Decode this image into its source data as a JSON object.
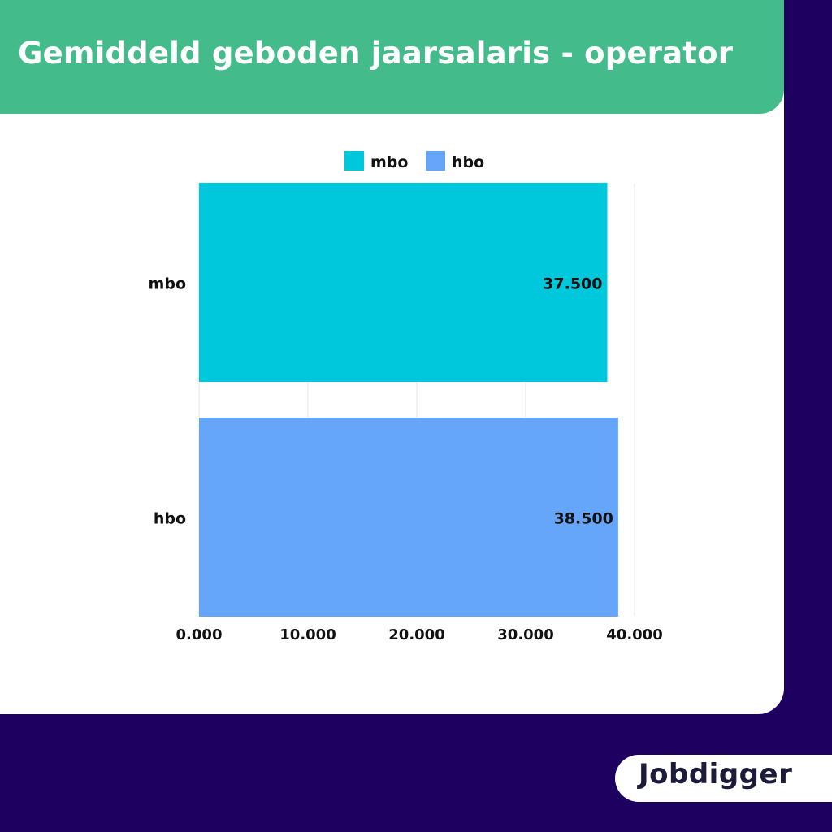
{
  "header": {
    "title": "Gemiddeld geboden jaarsalaris - operator"
  },
  "brand": {
    "logo_text": "Jobdigger"
  },
  "colors": {
    "background": "#1e0060",
    "header": "#44bb8a",
    "card": "#ffffff",
    "mbo": "#00c8dc",
    "hbo": "#66a6fa"
  },
  "chart_data": {
    "type": "bar",
    "orientation": "horizontal",
    "categories": [
      "mbo",
      "hbo"
    ],
    "values": [
      37500,
      38500
    ],
    "value_labels": [
      "37.500",
      "38.500"
    ],
    "bar_colors": [
      "#00c8dc",
      "#66a6fa"
    ],
    "legend": [
      {
        "label": "mbo",
        "color": "#00c8dc"
      },
      {
        "label": "hbo",
        "color": "#66a6fa"
      }
    ],
    "legend_position": "top",
    "xlim": [
      0,
      40000
    ],
    "x_ticks": [
      0,
      10000,
      20000,
      30000,
      40000
    ],
    "x_tick_labels": [
      "0.000",
      "10.000",
      "20.000",
      "30.000",
      "40.000"
    ],
    "grid": true
  }
}
